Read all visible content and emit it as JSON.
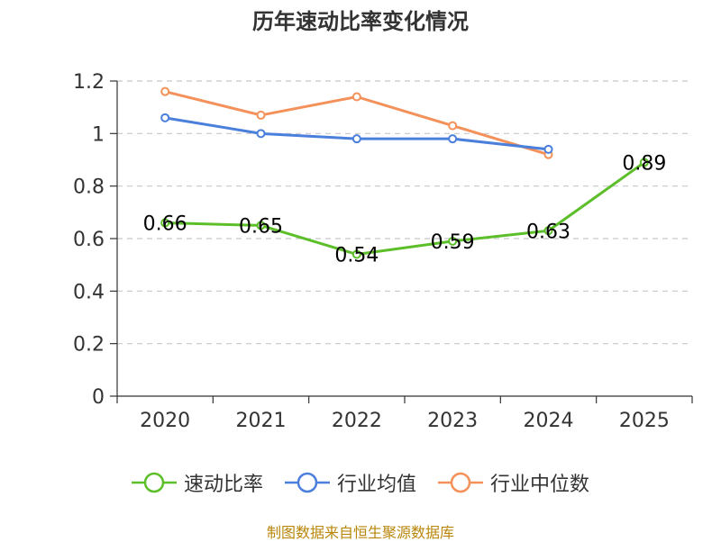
{
  "chart_data": {
    "type": "line",
    "title": "历年速动比率变化情况",
    "categories": [
      "2020",
      "2021",
      "2022",
      "2023",
      "2024",
      "2025"
    ],
    "ylim": [
      0,
      1.2
    ],
    "yticks": [
      "0",
      "0.2",
      "0.4",
      "0.6",
      "0.8",
      "1",
      "1.2"
    ],
    "yticks_values": [
      0,
      0.2,
      0.4,
      0.6,
      0.8,
      1.0,
      1.2
    ],
    "grid": true,
    "legend_position": "bottom",
    "series": [
      {
        "name": "速动比率",
        "color": "#5cbf2a",
        "values": [
          0.66,
          0.65,
          0.54,
          0.59,
          0.63,
          0.89
        ],
        "labels": [
          "0.66",
          "0.65",
          "0.54",
          "0.59",
          "0.63",
          "0.89"
        ]
      },
      {
        "name": "行业均值",
        "color": "#4a7fdc",
        "values": [
          1.06,
          1.0,
          0.98,
          0.98,
          0.94,
          null
        ]
      },
      {
        "name": "行业中位数",
        "color": "#f4915a",
        "values": [
          1.16,
          1.07,
          1.14,
          1.03,
          0.92,
          null
        ]
      }
    ]
  },
  "source": "制图数据来自恒生聚源数据库"
}
